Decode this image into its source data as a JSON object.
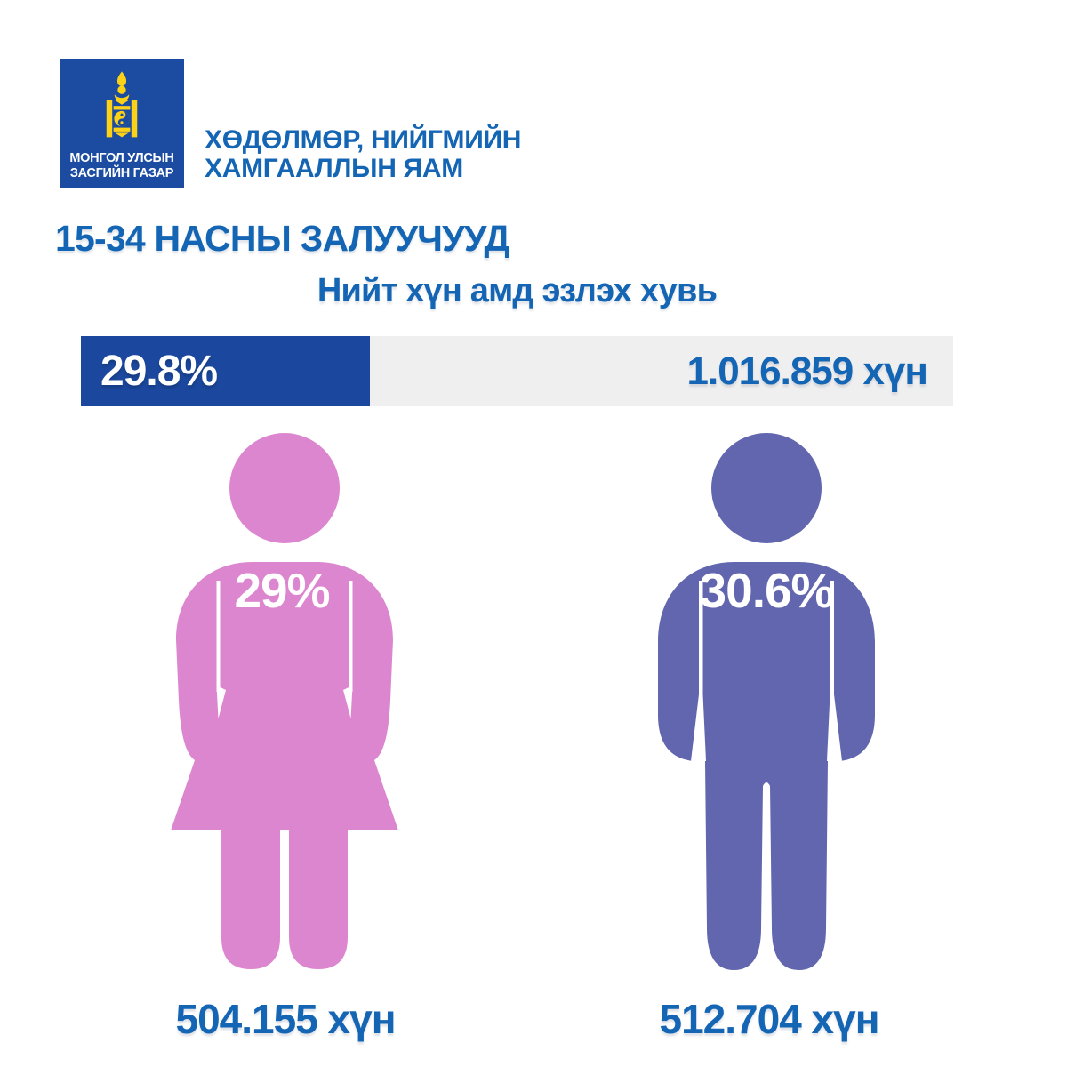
{
  "page": {
    "background": "#FFFFFF"
  },
  "colors": {
    "logo_blue": "#1B4CA1",
    "emblem_yellow": "#FCD116",
    "text_blue": "#1465B4",
    "bar_fill_blue": "#1B489E",
    "bar_track_gray": "#EFEFEF",
    "female_pink": "#DD86D0",
    "male_purple": "#6166AE",
    "label_white": "#FFFFFF"
  },
  "header": {
    "logo": {
      "emblem": "soyombo-state-emblem-icon",
      "line1": "МОНГОЛ УЛСЫН",
      "line2": "ЗАСГИЙН ГАЗАР"
    },
    "ministry": {
      "line1": "ХӨДӨЛМӨР, НИЙГМИЙН",
      "line2": "ХАМГААЛЛЫН ЯАМ"
    }
  },
  "title": "15-34 НАСНЫ ЗАЛУУЧУУД",
  "chart_data": {
    "type": "bar",
    "title": "Нийт хүн амд эзлэх хувь",
    "total": {
      "share_pct": 29.8,
      "share_label": "29.8%",
      "population": 1016859,
      "population_label": "1.016.859 хүн",
      "bar_fill_percent_width": 33.1
    },
    "groups": [
      {
        "name": "female",
        "share_pct": 29,
        "share_label": "29%",
        "count": 504155,
        "count_label": "504.155 хүн",
        "color": "#DD86D0"
      },
      {
        "name": "male",
        "share_pct": 30.6,
        "share_label": "30.6%",
        "count": 512704,
        "count_label": "512.704 хүн",
        "color": "#6166AE"
      }
    ]
  }
}
